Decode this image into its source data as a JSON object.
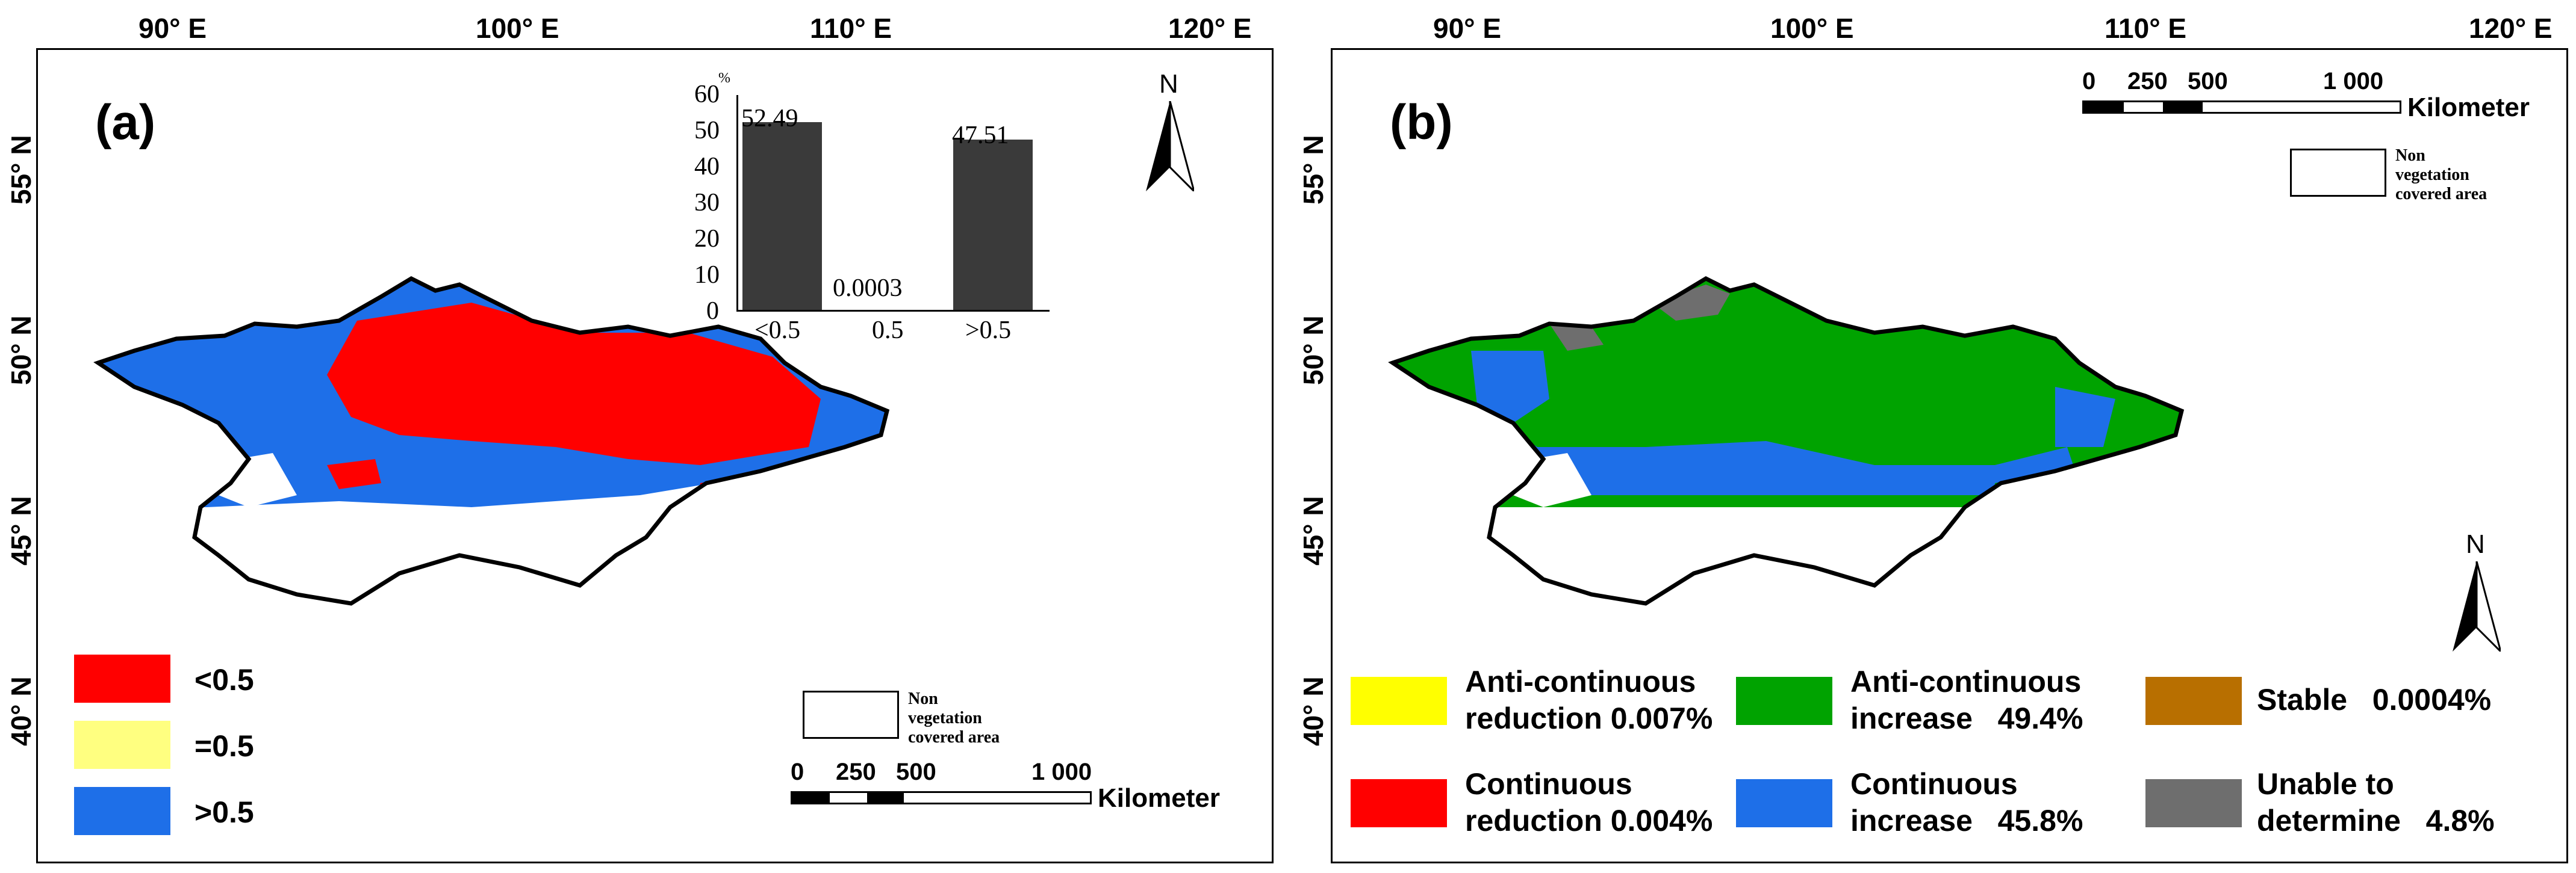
{
  "longitude_labels": [
    "90° E",
    "100° E",
    "110° E",
    "120° E"
  ],
  "latitude_labels": [
    "55° N",
    "50° N",
    "45° N",
    "40° N"
  ],
  "north_label": "N",
  "panel_a": {
    "label": "(a)",
    "legend": [
      {
        "label": "<0.5",
        "color": "#ff0000"
      },
      {
        "label": "=0.5",
        "color": "#ffff80"
      },
      {
        "label": ">0.5",
        "color": "#1e6fe8"
      }
    ],
    "non_vegetation_label": "Non vegetation covered area",
    "scalebar": {
      "ticks": [
        "0",
        "250",
        "500",
        "1 000"
      ],
      "unit": "Kilometer"
    },
    "inset_chart": {
      "unit": "%",
      "y_ticks": [
        "0",
        "10",
        "20",
        "30",
        "40",
        "50",
        "60"
      ]
    }
  },
  "panel_b": {
    "label": "(b)",
    "legend": [
      {
        "line1": "Anti-continuous",
        "line2": "reduction",
        "percent": "0.007%",
        "color": "#ffff00"
      },
      {
        "line1": "Anti-continuous",
        "line2": "increase",
        "percent": "49.4%",
        "color": "#00a300"
      },
      {
        "line1": "Stable",
        "line2": "",
        "percent": "0.0004%",
        "color": "#b86f00"
      },
      {
        "line1": "Continuous",
        "line2": "reduction",
        "percent": "0.004%",
        "color": "#ff0000"
      },
      {
        "line1": "Continuous",
        "line2": "increase",
        "percent": "45.8%",
        "color": "#1e6fe8"
      },
      {
        "line1": "Unable to",
        "line2": "determine",
        "percent": "4.8%",
        "color": "#6e6e6e"
      }
    ],
    "non_vegetation_label": "Non vegetation covered area",
    "scalebar": {
      "ticks": [
        "0",
        "250",
        "500",
        "1 000"
      ],
      "unit": "Kilometer"
    }
  },
  "chart_data": {
    "type": "bar",
    "categories": [
      "<0.5",
      "0.5",
      ">0.5"
    ],
    "values": [
      52.49,
      0.0003,
      47.51
    ],
    "value_labels": [
      "52.49",
      "0.0003",
      "47.51"
    ],
    "ylabel": "%",
    "ylim": [
      0,
      60
    ]
  }
}
